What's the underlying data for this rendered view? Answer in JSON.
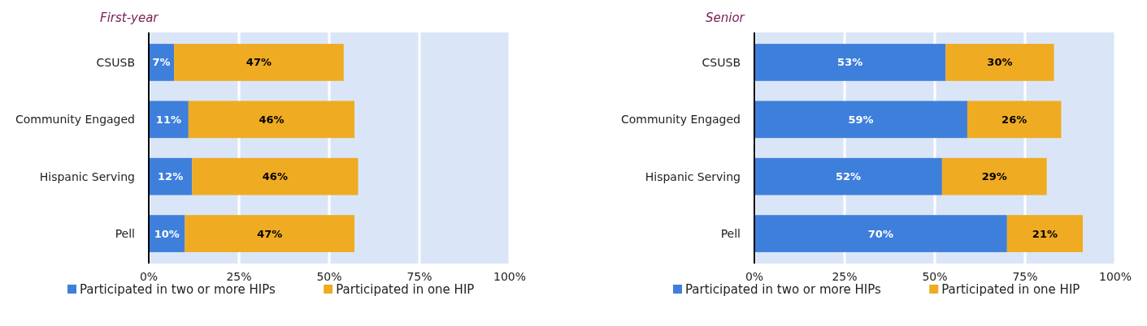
{
  "chart_data": [
    {
      "type": "bar",
      "orientation": "horizontal",
      "stacked": true,
      "title": "First-year",
      "categories": [
        "CSUSB",
        "Community Engaged",
        "Hispanic Serving",
        "Pell"
      ],
      "series": [
        {
          "name": "Participated in two or more HIPs",
          "color": "#3f7fdc",
          "values": [
            7,
            11,
            12,
            10
          ],
          "value_labels": [
            "7%",
            "11%",
            "12%",
            "10%"
          ]
        },
        {
          "name": "Participated in one HIP",
          "color": "#efab22",
          "values": [
            47,
            46,
            46,
            47
          ],
          "value_labels": [
            "47%",
            "46%",
            "46%",
            "47%"
          ]
        }
      ],
      "xlim": [
        0,
        100
      ],
      "xticks": [
        {
          "value": 0,
          "label": "0%"
        },
        {
          "value": 25,
          "label": "25%"
        },
        {
          "value": 50,
          "label": "50%"
        },
        {
          "value": 75,
          "label": "75%"
        },
        {
          "value": 100,
          "label": "100%"
        }
      ],
      "grid": "x",
      "legend": "bottom"
    },
    {
      "type": "bar",
      "orientation": "horizontal",
      "stacked": true,
      "title": "Senior",
      "categories": [
        "CSUSB",
        "Community Engaged",
        "Hispanic Serving",
        "Pell"
      ],
      "series": [
        {
          "name": "Participated in two or more HIPs",
          "color": "#3f7fdc",
          "values": [
            53,
            59,
            52,
            70
          ],
          "value_labels": [
            "53%",
            "59%",
            "52%",
            "70%"
          ]
        },
        {
          "name": "Participated in one HIP",
          "color": "#efab22",
          "values": [
            30,
            26,
            29,
            21
          ],
          "value_labels": [
            "30%",
            "26%",
            "29%",
            "21%"
          ]
        }
      ],
      "xlim": [
        0,
        100
      ],
      "xticks": [
        {
          "value": 0,
          "label": "0%"
        },
        {
          "value": 25,
          "label": "25%"
        },
        {
          "value": 50,
          "label": "50%"
        },
        {
          "value": 75,
          "label": "75%"
        },
        {
          "value": 100,
          "label": "100%"
        }
      ],
      "grid": "x",
      "legend": "bottom"
    }
  ]
}
